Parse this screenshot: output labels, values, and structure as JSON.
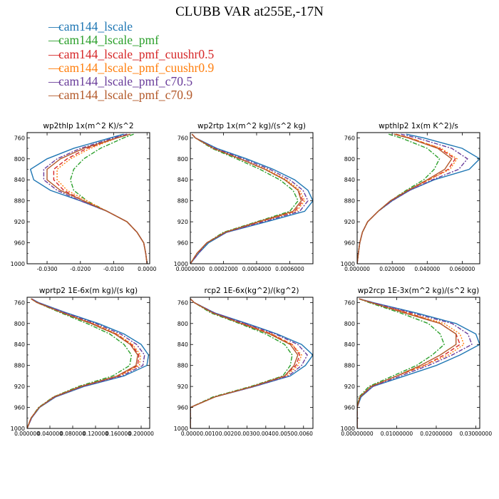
{
  "title": "CLUBB VAR at255E,-17N",
  "colors": {
    "frame": "#000000"
  },
  "legend": [
    {
      "label": "cam144_lscale",
      "color": "#1f77b4",
      "dash": "solid"
    },
    {
      "label": "cam144_lscale_pmf",
      "color": "#2ca02c",
      "dash": "dashdot"
    },
    {
      "label": "cam144_lscale_pmf_cuushr0.5",
      "color": "#d62728",
      "dash": "dash"
    },
    {
      "label": "cam144_lscale_pmf_cuushr0.9",
      "color": "#ff7f0e",
      "dash": "dot"
    },
    {
      "label": "cam144_lscale_pmf_c70.5",
      "color": "#6a3d9a",
      "dash": "dashdot"
    },
    {
      "label": "cam144_lscale_pmf_c70.9",
      "color": "#b3592a",
      "dash": "solid"
    }
  ],
  "chart_data": [
    {
      "type": "line",
      "title": "wp2thlp   1x(m^2 K)/s^2",
      "xlim": [
        -0.036,
        0.0008
      ],
      "ylim": [
        1000,
        750
      ],
      "xticks": [
        -0.03,
        -0.02,
        -0.01,
        0.0
      ],
      "xtick_labels": [
        "-0.0300",
        "-0.0200",
        "-0.0100",
        "0.0000"
      ],
      "yticks": [
        760,
        800,
        840,
        880,
        920,
        960,
        1000
      ],
      "ytick_labels": [
        "760",
        "800",
        "840",
        "880",
        "920",
        "960",
        "1000"
      ],
      "y": [
        753,
        760,
        780,
        800,
        820,
        840,
        860,
        880,
        900,
        920,
        940,
        960,
        980,
        1000
      ],
      "series": [
        {
          "name": "cam144_lscale",
          "values": [
            -0.007,
            -0.011,
            -0.022,
            -0.03,
            -0.035,
            -0.034,
            -0.029,
            -0.02,
            -0.012,
            -0.006,
            -0.003,
            -0.001,
            -0.0004,
            0.0
          ]
        },
        {
          "name": "cam144_lscale_pmf",
          "values": [
            -0.004,
            -0.007,
            -0.014,
            -0.019,
            -0.022,
            -0.023,
            -0.022,
            -0.018,
            -0.012,
            -0.006,
            -0.003,
            -0.001,
            -0.0004,
            0.0
          ]
        },
        {
          "name": "cam144_lscale_pmf_cuushr0.5",
          "values": [
            -0.006,
            -0.009,
            -0.018,
            -0.024,
            -0.028,
            -0.028,
            -0.025,
            -0.019,
            -0.012,
            -0.006,
            -0.003,
            -0.001,
            -0.0004,
            0.0
          ]
        },
        {
          "name": "cam144_lscale_pmf_cuushr0.9",
          "values": [
            -0.006,
            -0.009,
            -0.017,
            -0.023,
            -0.027,
            -0.027,
            -0.024,
            -0.018,
            -0.012,
            -0.006,
            -0.003,
            -0.001,
            -0.0004,
            0.0
          ]
        },
        {
          "name": "cam144_lscale_pmf_c70.5",
          "values": [
            -0.006,
            -0.01,
            -0.02,
            -0.027,
            -0.031,
            -0.031,
            -0.027,
            -0.02,
            -0.012,
            -0.006,
            -0.003,
            -0.001,
            -0.0004,
            0.0
          ]
        },
        {
          "name": "cam144_lscale_pmf_c70.9",
          "values": [
            -0.005,
            -0.009,
            -0.019,
            -0.026,
            -0.03,
            -0.03,
            -0.026,
            -0.019,
            -0.012,
            -0.006,
            -0.003,
            -0.001,
            -0.0004,
            0.0
          ]
        }
      ]
    },
    {
      "type": "line",
      "title": "wp2rtp   1x(m^2 kg)/(s^2 kg)",
      "xlim": [
        0.0,
        0.00074
      ],
      "ylim": [
        1000,
        750
      ],
      "xticks": [
        0.0,
        0.0002,
        0.0004,
        0.0006
      ],
      "xtick_labels": [
        "0.0000000",
        "0.0002000",
        "0.0004000",
        "0.0006000"
      ],
      "yticks": [
        760,
        800,
        840,
        880,
        920,
        960,
        1000
      ],
      "ytick_labels": [
        "760",
        "800",
        "840",
        "880",
        "920",
        "960",
        "1000"
      ],
      "y": [
        753,
        760,
        780,
        800,
        820,
        840,
        860,
        880,
        900,
        920,
        940,
        960,
        980,
        1000
      ],
      "series": [
        {
          "name": "cam144_lscale",
          "values": [
            1e-05,
            3e-05,
            0.00016,
            0.00034,
            0.0005,
            0.00063,
            0.00071,
            0.00074,
            0.00069,
            0.00046,
            0.00022,
            0.00011,
            5e-05,
            0.0
          ]
        },
        {
          "name": "cam144_lscale_pmf",
          "values": [
            1e-05,
            3e-05,
            0.00013,
            0.00028,
            0.00042,
            0.00054,
            0.00062,
            0.00065,
            0.0006,
            0.0004,
            0.0002,
            0.0001,
            4e-05,
            0.0
          ]
        },
        {
          "name": "cam144_lscale_pmf_cuushr0.5",
          "values": [
            1e-05,
            3e-05,
            0.00014,
            0.0003,
            0.00045,
            0.00057,
            0.00065,
            0.00068,
            0.00063,
            0.00042,
            0.00021,
            0.0001,
            4e-05,
            0.0
          ]
        },
        {
          "name": "cam144_lscale_pmf_cuushr0.9",
          "values": [
            1e-05,
            3e-05,
            0.00014,
            0.0003,
            0.00046,
            0.00058,
            0.00066,
            0.00069,
            0.00064,
            0.00042,
            0.00021,
            0.0001,
            4e-05,
            0.0
          ]
        },
        {
          "name": "cam144_lscale_pmf_c70.5",
          "values": [
            1e-05,
            3e-05,
            0.00015,
            0.00032,
            0.00048,
            0.0006,
            0.00068,
            0.00071,
            0.00066,
            0.00044,
            0.00022,
            0.0001,
            5e-05,
            0.0
          ]
        },
        {
          "name": "cam144_lscale_pmf_c70.9",
          "values": [
            1e-05,
            3e-05,
            0.00014,
            0.0003,
            0.00045,
            0.00057,
            0.00065,
            0.00067,
            0.00062,
            0.00041,
            0.00021,
            0.0001,
            4e-05,
            0.0
          ]
        }
      ]
    },
    {
      "type": "line",
      "title": "wpthlp2   1x(m K^2)/s",
      "xlim": [
        0.0,
        0.07
      ],
      "ylim": [
        1000,
        750
      ],
      "xticks": [
        0.0,
        0.02,
        0.04,
        0.06
      ],
      "xtick_labels": [
        "0.000000",
        "0.020000",
        "0.040000",
        "0.060000"
      ],
      "yticks": [
        760,
        800,
        840,
        880,
        920,
        960,
        1000
      ],
      "ytick_labels": [
        "760",
        "800",
        "840",
        "880",
        "920",
        "960",
        "1000"
      ],
      "y": [
        753,
        760,
        780,
        800,
        820,
        840,
        860,
        880,
        900,
        920,
        940,
        960,
        980,
        1000
      ],
      "series": [
        {
          "name": "cam144_lscale",
          "values": [
            0.028,
            0.038,
            0.06,
            0.07,
            0.064,
            0.044,
            0.03,
            0.02,
            0.012,
            0.006,
            0.003,
            0.0015,
            0.0007,
            0.0
          ]
        },
        {
          "name": "cam144_lscale_pmf",
          "values": [
            0.018,
            0.025,
            0.04,
            0.047,
            0.044,
            0.038,
            0.028,
            0.019,
            0.012,
            0.006,
            0.003,
            0.0015,
            0.0007,
            0.0
          ]
        },
        {
          "name": "cam144_lscale_pmf_cuushr0.5",
          "values": [
            0.022,
            0.03,
            0.047,
            0.056,
            0.052,
            0.041,
            0.029,
            0.019,
            0.012,
            0.006,
            0.003,
            0.0015,
            0.0007,
            0.0
          ]
        },
        {
          "name": "cam144_lscale_pmf_cuushr0.9",
          "values": [
            0.022,
            0.03,
            0.048,
            0.057,
            0.053,
            0.041,
            0.029,
            0.019,
            0.012,
            0.006,
            0.003,
            0.0015,
            0.0007,
            0.0
          ]
        },
        {
          "name": "cam144_lscale_pmf_c70.5",
          "values": [
            0.025,
            0.034,
            0.054,
            0.063,
            0.058,
            0.043,
            0.03,
            0.02,
            0.012,
            0.006,
            0.003,
            0.0015,
            0.0007,
            0.0
          ]
        },
        {
          "name": "cam144_lscale_pmf_c70.9",
          "values": [
            0.021,
            0.029,
            0.046,
            0.054,
            0.05,
            0.04,
            0.029,
            0.019,
            0.012,
            0.006,
            0.003,
            0.0015,
            0.0007,
            0.0
          ]
        }
      ]
    },
    {
      "type": "line",
      "title": "wprtp2   1E-6x(m kg)/(s kg)",
      "xlim": [
        0.0,
        0.215
      ],
      "ylim": [
        1000,
        750
      ],
      "xticks": [
        0.0,
        0.04,
        0.08,
        0.12,
        0.16,
        0.2
      ],
      "xtick_labels": [
        "0.000000",
        "0.040000",
        "0.080000",
        "0.120000",
        "0.160000",
        "0.200000"
      ],
      "yticks": [
        760,
        800,
        840,
        880,
        920,
        960,
        1000
      ],
      "ytick_labels": [
        "760",
        "800",
        "840",
        "880",
        "920",
        "960",
        "1000"
      ],
      "y": [
        753,
        760,
        780,
        800,
        820,
        840,
        860,
        880,
        900,
        920,
        940,
        960,
        980,
        1000
      ],
      "series": [
        {
          "name": "cam144_lscale",
          "values": [
            0.008,
            0.02,
            0.07,
            0.125,
            0.17,
            0.2,
            0.213,
            0.21,
            0.17,
            0.1,
            0.05,
            0.022,
            0.008,
            0.0
          ]
        },
        {
          "name": "cam144_lscale_pmf",
          "values": [
            0.007,
            0.017,
            0.06,
            0.105,
            0.145,
            0.17,
            0.183,
            0.18,
            0.15,
            0.09,
            0.046,
            0.02,
            0.007,
            0.0
          ]
        },
        {
          "name": "cam144_lscale_pmf_cuushr0.5",
          "values": [
            0.007,
            0.018,
            0.064,
            0.114,
            0.156,
            0.183,
            0.196,
            0.194,
            0.16,
            0.095,
            0.048,
            0.021,
            0.007,
            0.0
          ]
        },
        {
          "name": "cam144_lscale_pmf_cuushr0.9",
          "values": [
            0.007,
            0.018,
            0.065,
            0.116,
            0.158,
            0.185,
            0.199,
            0.197,
            0.162,
            0.096,
            0.048,
            0.021,
            0.007,
            0.0
          ]
        },
        {
          "name": "cam144_lscale_pmf_c70.5",
          "values": [
            0.008,
            0.019,
            0.068,
            0.12,
            0.164,
            0.192,
            0.206,
            0.203,
            0.166,
            0.098,
            0.049,
            0.021,
            0.008,
            0.0
          ]
        },
        {
          "name": "cam144_lscale_pmf_c70.9",
          "values": [
            0.007,
            0.017,
            0.063,
            0.112,
            0.154,
            0.181,
            0.194,
            0.191,
            0.158,
            0.094,
            0.047,
            0.021,
            0.007,
            0.0
          ]
        }
      ]
    },
    {
      "type": "line",
      "title": "rcp2   1E-6x(kg^2)/(kg^2)",
      "xlim": [
        0.0,
        0.0065
      ],
      "ylim": [
        1000,
        750
      ],
      "xticks": [
        0.0,
        0.001,
        0.002,
        0.003,
        0.004,
        0.005,
        0.006
      ],
      "xtick_labels": [
        "0.0000",
        "0.0010",
        "0.0020",
        "0.0030",
        "0.0040",
        "0.0050",
        "0.0060"
      ],
      "yticks": [
        760,
        800,
        840,
        880,
        920,
        960,
        1000
      ],
      "ytick_labels": [
        "760",
        "800",
        "840",
        "880",
        "920",
        "960",
        "1000"
      ],
      "y": [
        753,
        760,
        780,
        800,
        820,
        840,
        860,
        880,
        900,
        920,
        940,
        960,
        980,
        1000
      ],
      "series": [
        {
          "name": "cam144_lscale",
          "values": [
            0.0,
            0.0002,
            0.0013,
            0.003,
            0.0046,
            0.0059,
            0.0065,
            0.0061,
            0.0053,
            0.0034,
            0.0013,
            0.0,
            0.0,
            0.0
          ]
        },
        {
          "name": "cam144_lscale_pmf",
          "values": [
            0.0,
            0.0002,
            0.0011,
            0.0026,
            0.004,
            0.005,
            0.0054,
            0.0053,
            0.0049,
            0.0032,
            0.0012,
            0.0,
            0.0,
            0.0
          ]
        },
        {
          "name": "cam144_lscale_pmf_cuushr0.5",
          "values": [
            0.0,
            0.0002,
            0.0012,
            0.0028,
            0.0043,
            0.0054,
            0.0058,
            0.0056,
            0.005,
            0.0033,
            0.0013,
            0.0,
            0.0,
            0.0
          ]
        },
        {
          "name": "cam144_lscale_pmf_cuushr0.9",
          "values": [
            0.0,
            0.0002,
            0.0012,
            0.0028,
            0.0043,
            0.0054,
            0.0059,
            0.0057,
            0.0051,
            0.0033,
            0.0013,
            0.0,
            0.0,
            0.0
          ]
        },
        {
          "name": "cam144_lscale_pmf_c70.5",
          "values": [
            0.0,
            0.0002,
            0.0013,
            0.0029,
            0.0045,
            0.0057,
            0.0062,
            0.0059,
            0.0052,
            0.0034,
            0.0013,
            0.0,
            0.0,
            0.0
          ]
        },
        {
          "name": "cam144_lscale_pmf_c70.9",
          "values": [
            0.0,
            0.0002,
            0.0012,
            0.0027,
            0.0042,
            0.0053,
            0.0057,
            0.0055,
            0.005,
            0.0033,
            0.0013,
            0.0,
            0.0,
            0.0
          ]
        }
      ]
    },
    {
      "type": "line",
      "title": "wp2rcp   1E-3x(m^2 kg)/(s^2 kg)",
      "xlim": [
        0.0,
        0.031
      ],
      "ylim": [
        1000,
        750
      ],
      "xticks": [
        0.0,
        0.01,
        0.02,
        0.03
      ],
      "xtick_labels": [
        "0.00000000",
        "0.01000000",
        "0.02000000",
        "0.03000000"
      ],
      "yticks": [
        760,
        800,
        840,
        880,
        920,
        960,
        1000
      ],
      "ytick_labels": [
        "760",
        "800",
        "840",
        "880",
        "920",
        "960",
        "1000"
      ],
      "y": [
        753,
        760,
        780,
        800,
        820,
        840,
        860,
        880,
        900,
        920,
        940,
        960,
        980,
        1000
      ],
      "series": [
        {
          "name": "cam144_lscale",
          "values": [
            0.0005,
            0.004,
            0.015,
            0.025,
            0.03,
            0.031,
            0.026,
            0.02,
            0.012,
            0.004,
            0.001,
            0.0,
            0.0,
            0.0
          ]
        },
        {
          "name": "cam144_lscale_pmf",
          "values": [
            0.0005,
            0.003,
            0.011,
            0.018,
            0.021,
            0.022,
            0.019,
            0.015,
            0.009,
            0.003,
            0.0005,
            0.0,
            0.0,
            0.0
          ]
        },
        {
          "name": "cam144_lscale_pmf_cuushr0.5",
          "values": [
            0.0005,
            0.0035,
            0.013,
            0.021,
            0.025,
            0.026,
            0.022,
            0.017,
            0.01,
            0.0035,
            0.0007,
            0.0,
            0.0,
            0.0
          ]
        },
        {
          "name": "cam144_lscale_pmf_cuushr0.9",
          "values": [
            0.0005,
            0.0035,
            0.013,
            0.022,
            0.026,
            0.027,
            0.023,
            0.017,
            0.01,
            0.0035,
            0.0007,
            0.0,
            0.0,
            0.0
          ]
        },
        {
          "name": "cam144_lscale_pmf_c70.5",
          "values": [
            0.0005,
            0.004,
            0.014,
            0.024,
            0.028,
            0.029,
            0.024,
            0.018,
            0.011,
            0.004,
            0.0008,
            0.0,
            0.0,
            0.0
          ]
        },
        {
          "name": "cam144_lscale_pmf_c70.9",
          "values": [
            0.0005,
            0.0035,
            0.012,
            0.021,
            0.025,
            0.025,
            0.021,
            0.016,
            0.01,
            0.0035,
            0.0007,
            0.0,
            0.0,
            0.0
          ]
        }
      ]
    }
  ]
}
